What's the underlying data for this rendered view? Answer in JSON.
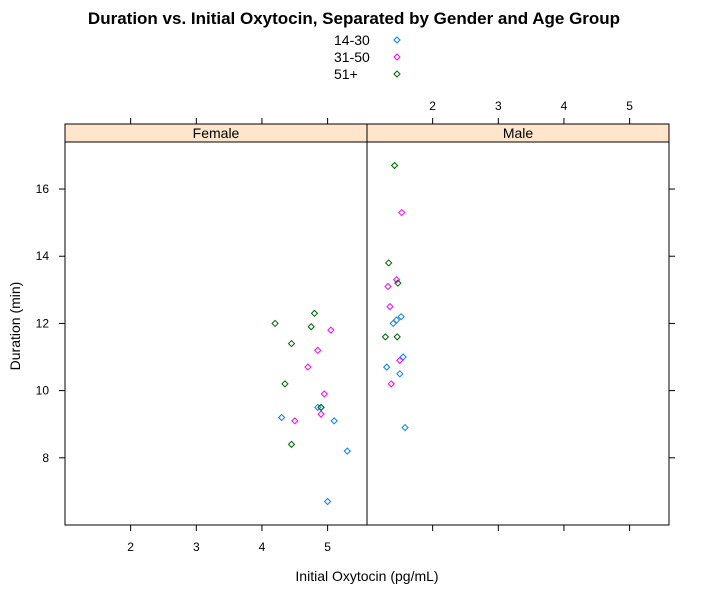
{
  "chart_data": {
    "type": "scatter",
    "title": "Duration vs. Initial Oxytocin, Separated by Gender and Age Group",
    "xlabel": "Initial Oxytocin (pg/mL)",
    "ylabel": "Duration (min)",
    "xlim": [
      1.0,
      5.6
    ],
    "ylim": [
      6.0,
      17.4
    ],
    "x_ticks": [
      2,
      3,
      4,
      5
    ],
    "y_ticks": [
      8,
      10,
      12,
      14,
      16
    ],
    "legend_position": "top",
    "legend": [
      {
        "name": "14-30",
        "color": "#0080ff"
      },
      {
        "name": "31-50",
        "color": "#ff00ff"
      },
      {
        "name": "51+",
        "color": "#006400"
      }
    ],
    "strip_color": "#ffe5cc",
    "panels": [
      {
        "label": "Female",
        "series": [
          {
            "name": "14-30",
            "points": [
              [
                4.3,
                9.2
              ],
              [
                4.85,
                9.5
              ],
              [
                4.9,
                9.5
              ],
              [
                5.1,
                9.1
              ],
              [
                5.3,
                8.2
              ],
              [
                5.0,
                6.7
              ]
            ]
          },
          {
            "name": "31-50",
            "points": [
              [
                4.5,
                9.1
              ],
              [
                4.7,
                10.7
              ],
              [
                4.85,
                11.2
              ],
              [
                4.9,
                9.3
              ],
              [
                4.95,
                9.9
              ],
              [
                5.05,
                11.8
              ]
            ]
          },
          {
            "name": "51+",
            "points": [
              [
                4.2,
                12.0
              ],
              [
                4.35,
                10.2
              ],
              [
                4.45,
                11.4
              ],
              [
                4.45,
                8.4
              ],
              [
                4.75,
                11.9
              ],
              [
                4.8,
                12.3
              ],
              [
                4.9,
                9.5
              ]
            ]
          }
        ]
      },
      {
        "label": "Male",
        "series": [
          {
            "name": "14-30",
            "points": [
              [
                1.3,
                10.7
              ],
              [
                1.4,
                12.0
              ],
              [
                1.45,
                12.1
              ],
              [
                1.5,
                10.5
              ],
              [
                1.52,
                12.2
              ],
              [
                1.55,
                11.0
              ],
              [
                1.58,
                8.9
              ]
            ]
          },
          {
            "name": "31-50",
            "points": [
              [
                1.32,
                13.1
              ],
              [
                1.35,
                12.5
              ],
              [
                1.37,
                10.2
              ],
              [
                1.45,
                13.3
              ],
              [
                1.5,
                10.9
              ],
              [
                1.53,
                15.3
              ]
            ]
          },
          {
            "name": "51+",
            "points": [
              [
                1.28,
                11.6
              ],
              [
                1.33,
                13.8
              ],
              [
                1.42,
                16.7
              ],
              [
                1.46,
                11.6
              ],
              [
                1.47,
                13.2
              ]
            ]
          }
        ]
      }
    ]
  }
}
